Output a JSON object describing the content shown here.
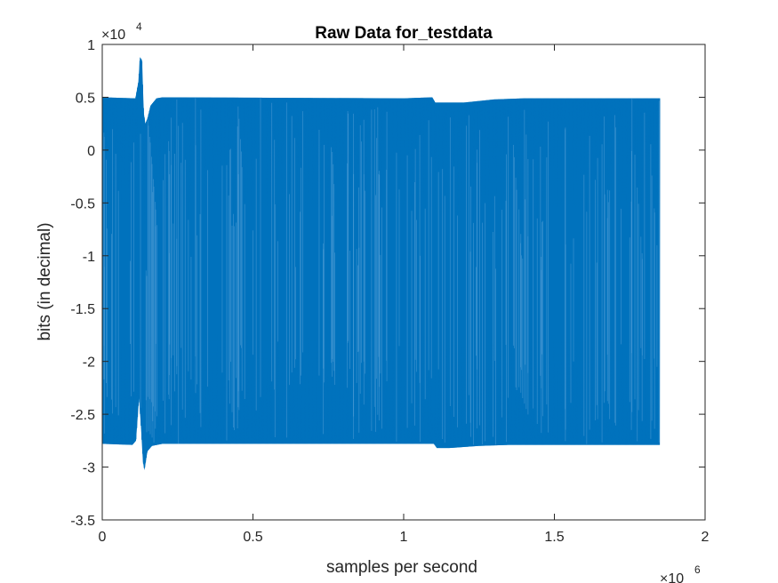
{
  "chart_data": {
    "type": "line",
    "title": "Raw Data for_testdata",
    "xlabel": "samples per second",
    "ylabel": "bits (in decimal)",
    "x_exponent_base": "×10",
    "x_exponent_power": "6",
    "y_exponent_base": "×10",
    "y_exponent_power": "4",
    "xlim": [
      0,
      2000000
    ],
    "ylim": [
      -35000,
      10000
    ],
    "x_ticks": [
      0,
      500000,
      1000000,
      1500000,
      2000000
    ],
    "x_tick_labels": [
      "0",
      "0.5",
      "1",
      "1.5",
      "2"
    ],
    "y_ticks": [
      10000,
      5000,
      0,
      -5000,
      -10000,
      -15000,
      -20000,
      -25000,
      -30000,
      -35000
    ],
    "y_tick_labels": [
      "1",
      "0.5",
      "0",
      "-0.5",
      "-1",
      "-1.5",
      "-2",
      "-2.5",
      "-3",
      "-3.5"
    ],
    "grid": false,
    "line_color": "#0072BD",
    "series": [
      {
        "x_start": 0,
        "x_end": 1850000,
        "upper_envelope": [
          [
            0,
            5000
          ],
          [
            110000,
            4900
          ],
          [
            120000,
            6500
          ],
          [
            125000,
            8800
          ],
          [
            132000,
            8500
          ],
          [
            138000,
            3500
          ],
          [
            143000,
            2500
          ],
          [
            150000,
            3000
          ],
          [
            160000,
            4200
          ],
          [
            180000,
            4900
          ],
          [
            200000,
            5000
          ],
          [
            1000000,
            4900
          ],
          [
            1095000,
            5000
          ],
          [
            1105000,
            4500
          ],
          [
            1200000,
            4500
          ],
          [
            1300000,
            4800
          ],
          [
            1400000,
            4900
          ],
          [
            1850000,
            4900
          ]
        ],
        "lower_envelope": [
          [
            0,
            -27800
          ],
          [
            100000,
            -27900
          ],
          [
            112000,
            -27500
          ],
          [
            122000,
            -23500
          ],
          [
            128000,
            -26000
          ],
          [
            135000,
            -29500
          ],
          [
            140000,
            -30300
          ],
          [
            150000,
            -28500
          ],
          [
            165000,
            -28000
          ],
          [
            200000,
            -27800
          ],
          [
            1100000,
            -27800
          ],
          [
            1110000,
            -28200
          ],
          [
            1150000,
            -28200
          ],
          [
            1250000,
            -28000
          ],
          [
            1350000,
            -27900
          ],
          [
            1850000,
            -27900
          ]
        ]
      }
    ]
  }
}
